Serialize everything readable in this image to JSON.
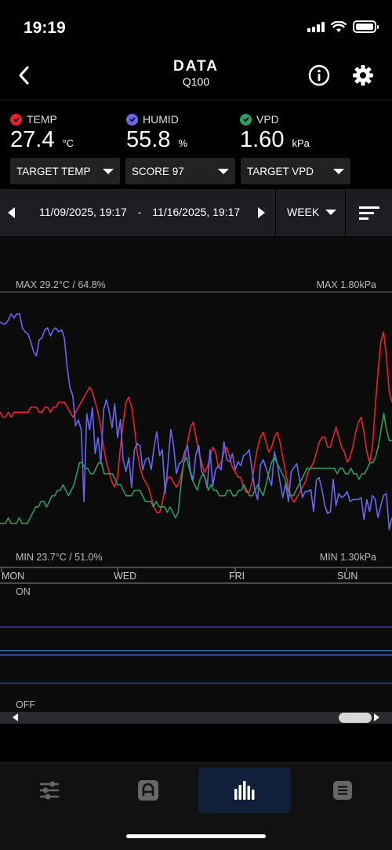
{
  "status_bar": {
    "time": "19:19"
  },
  "header": {
    "title": "DATA",
    "subtitle": "Q100"
  },
  "sensors": [
    {
      "label": "TEMP",
      "value": "27.4",
      "unit": "°C",
      "color": "#e8222e"
    },
    {
      "label": "HUMID",
      "value": "55.8",
      "unit": "%",
      "color": "#6a66f0"
    },
    {
      "label": "VPD",
      "value": "1.60",
      "unit": "kPa",
      "color": "#2f9a62"
    }
  ],
  "dropdowns": [
    {
      "label": "TARGET TEMP"
    },
    {
      "label": "SCORE 97"
    },
    {
      "label": "TARGET VPD"
    }
  ],
  "date_range": {
    "start": "11/09/2025, 19:17",
    "separator": "-",
    "end": "11/16/2025, 19:17",
    "period": "WEEK"
  },
  "chart_labels": {
    "max_left": "MAX 29.2°C / 64.8%",
    "max_right": "MAX 1.80kPa",
    "min_left": "MIN 23.7°C / 51.0%",
    "min_right": "MIN 1.30kPa",
    "on": "ON",
    "off": "OFF"
  },
  "chart_data": {
    "type": "line",
    "x_ticks": [
      "MON",
      "WED",
      "FRI",
      "SUN"
    ],
    "temp_range_c": [
      23.7,
      29.2
    ],
    "humid_range_pct": [
      51.0,
      64.8
    ],
    "vpd_range_kpa": [
      1.3,
      1.8
    ],
    "series": [
      {
        "name": "TEMP",
        "color": "#e8222e",
        "values": [
          26.8,
          26.7,
          26.7,
          26.8,
          26.7,
          26.8,
          26.8,
          26.8,
          26.8,
          26.8,
          26.8,
          26.9,
          26.9,
          26.9,
          26.8,
          26.8,
          26.9,
          26.9,
          26.8,
          26.9,
          26.9,
          27.0,
          27.0,
          27.0,
          26.9,
          26.8,
          26.7,
          26.8,
          26.9,
          27.0,
          27.1,
          27.2,
          27.3,
          27.2,
          27.0,
          26.8,
          26.5,
          26.1,
          25.8,
          25.6,
          25.4,
          25.3,
          25.5,
          26.1,
          26.6,
          27.0,
          27.1,
          26.9,
          26.5,
          26.0,
          25.7,
          25.5,
          25.4,
          25.3,
          25.1,
          24.9,
          24.8,
          24.8,
          25.0,
          25.3,
          25.5,
          25.5,
          25.4,
          25.3,
          25.4,
          25.6,
          25.9,
          26.2,
          26.5,
          26.6,
          26.3,
          26.0,
          25.8,
          25.6,
          25.7,
          25.9,
          26.1,
          26.0,
          25.7,
          25.8,
          26.0,
          26.1,
          25.9,
          25.7,
          25.6,
          25.5,
          25.5,
          25.3,
          25.2,
          25.2,
          25.4,
          25.8,
          26.1,
          26.3,
          26.4,
          26.2,
          26.0,
          26.1,
          26.3,
          26.4,
          26.2,
          25.9,
          25.6,
          25.3,
          25.1,
          25.0,
          25.1,
          25.2,
          25.3,
          25.4,
          25.6,
          25.7,
          25.8,
          26.0,
          26.2,
          26.3,
          26.3,
          26.1,
          26.1,
          26.3,
          26.5,
          26.3,
          26.1,
          26.0,
          25.8,
          25.9,
          26.1,
          26.4,
          26.6,
          26.7,
          26.4,
          26.0,
          25.8,
          26.1,
          26.9,
          27.6,
          28.2,
          28.4,
          27.9,
          27.2,
          27.0
        ]
      },
      {
        "name": "HUMID",
        "color": "#6a66f0",
        "values": [
          63.3,
          63.2,
          63.2,
          63.4,
          63.7,
          63.5,
          63.7,
          63.7,
          63.0,
          62.8,
          62.7,
          62.3,
          61.8,
          61.6,
          62.4,
          62.5,
          62.9,
          63.0,
          62.6,
          62.9,
          63.0,
          62.8,
          62.9,
          62.5,
          61.0,
          60.0,
          59.6,
          58.1,
          58.4,
          57.9,
          54.3,
          58.7,
          57.9,
          59.0,
          56.7,
          57.5,
          56.2,
          58.9,
          59.4,
          58.8,
          58.0,
          59.2,
          57.5,
          58.4,
          56.4,
          55.8,
          56.5,
          55.0,
          56.9,
          57.2,
          57.1,
          55.9,
          56.4,
          56.5,
          55.9,
          57.0,
          57.8,
          56.6,
          56.9,
          54.7,
          56.2,
          57.9,
          57.1,
          55.7,
          56.2,
          56.3,
          56.8,
          57.1,
          55.8,
          55.4,
          56.7,
          57.1,
          55.8,
          55.6,
          55.0,
          56.9,
          55.1,
          55.9,
          56.1,
          55.9,
          57.3,
          56.4,
          56.3,
          56.7,
          55.9,
          56.3,
          56.1,
          56.6,
          56.7,
          56.9,
          55.9,
          54.9,
          54.4,
          56.1,
          56.4,
          56.0,
          55.5,
          55.1,
          56.8,
          56.2,
          55.3,
          54.5,
          55.2,
          54.3,
          55.8,
          56.0,
          56.2,
          55.4,
          54.5,
          54.8,
          54.8,
          54.9,
          53.8,
          55.4,
          55.5,
          54.9,
          54.1,
          53.7,
          53.8,
          55.4,
          54.1,
          54.7,
          54.5,
          54.6,
          54.8,
          54.3,
          54.4,
          54.4,
          54.4,
          54.5,
          53.4,
          54.4,
          53.8,
          54.6,
          54.4,
          53.5,
          54.1,
          54.6,
          54.7,
          52.9,
          53.5
        ]
      },
      {
        "name": "VPD",
        "color": "#2f9a62",
        "values": [
          1.38,
          1.38,
          1.38,
          1.39,
          1.38,
          1.38,
          1.38,
          1.39,
          1.38,
          1.38,
          1.38,
          1.39,
          1.4,
          1.41,
          1.41,
          1.42,
          1.42,
          1.41,
          1.42,
          1.43,
          1.43,
          1.44,
          1.44,
          1.45,
          1.44,
          1.43,
          1.44,
          1.45,
          1.47,
          1.49,
          1.49,
          1.48,
          1.48,
          1.47,
          1.47,
          1.48,
          1.49,
          1.49,
          1.47,
          1.47,
          1.47,
          1.47,
          1.46,
          1.45,
          1.45,
          1.44,
          1.43,
          1.43,
          1.43,
          1.44,
          1.44,
          1.44,
          1.43,
          1.42,
          1.42,
          1.42,
          1.41,
          1.42,
          1.41,
          1.41,
          1.41,
          1.4,
          1.41,
          1.4,
          1.39,
          1.4,
          1.45,
          1.49,
          1.5,
          1.48,
          1.46,
          1.45,
          1.44,
          1.46,
          1.47,
          1.46,
          1.44,
          1.45,
          1.44,
          1.44,
          1.43,
          1.43,
          1.43,
          1.44,
          1.44,
          1.43,
          1.43,
          1.44,
          1.44,
          1.45,
          1.44,
          1.43,
          1.43,
          1.44,
          1.45,
          1.44,
          1.43,
          1.45,
          1.47,
          1.49,
          1.5,
          1.49,
          1.48,
          1.47,
          1.46,
          1.44,
          1.43,
          1.43,
          1.44,
          1.45,
          1.46,
          1.47,
          1.48,
          1.48,
          1.48,
          1.48,
          1.48,
          1.48,
          1.48,
          1.48,
          1.48,
          1.48,
          1.48,
          1.47,
          1.48,
          1.48,
          1.47,
          1.47,
          1.48,
          1.47,
          1.47,
          1.46,
          1.47,
          1.47,
          1.48,
          1.49,
          1.49,
          1.5,
          1.52,
          1.55,
          1.58,
          1.55,
          1.53,
          1.53
        ]
      }
    ],
    "onoff_levels": [
      0.7,
      0.47,
      0.43,
      0.15
    ]
  },
  "tabs": [
    {
      "name": "controls-tab",
      "icon": "sliders-icon"
    },
    {
      "name": "automation-tab",
      "icon": "letter-a-icon"
    },
    {
      "name": "data-tab",
      "icon": "bar-chart-icon"
    },
    {
      "name": "menu-tab",
      "icon": "list-icon"
    }
  ]
}
